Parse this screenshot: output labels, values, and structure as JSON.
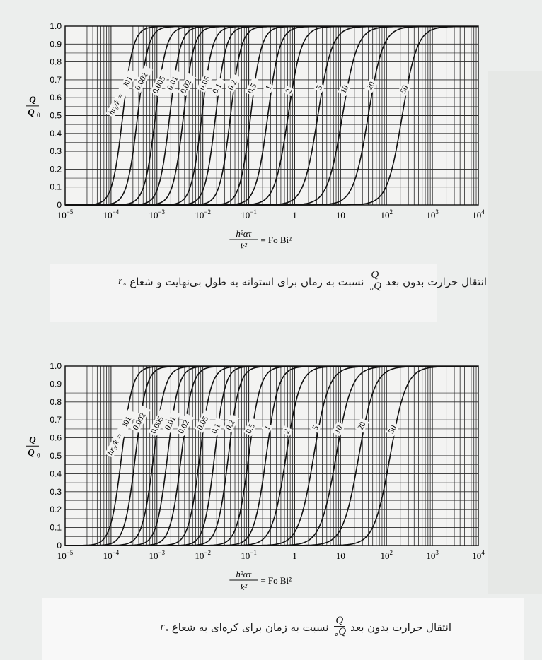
{
  "chart_data": [
    {
      "type": "line",
      "title": "",
      "xscale": "log",
      "xlim": [
        1e-05,
        10000
      ],
      "ylim": [
        0,
        1.0
      ],
      "xticks": [
        "10",
        "−5",
        "10",
        "−4",
        "10",
        "−3",
        "10",
        "−2",
        "10",
        "−1",
        "1",
        "10",
        "10",
        "2",
        "10",
        "3",
        "10",
        "4"
      ],
      "xtick_labels": [
        {
          "base": "10",
          "exp": "−5"
        },
        {
          "base": "10",
          "exp": "−4"
        },
        {
          "base": "10",
          "exp": "−3"
        },
        {
          "base": "10",
          "exp": "−2"
        },
        {
          "base": "10",
          "exp": "−1"
        },
        {
          "base": "1",
          "exp": ""
        },
        {
          "base": "10",
          "exp": ""
        },
        {
          "base": "10",
          "exp": "2"
        },
        {
          "base": "10",
          "exp": "3"
        },
        {
          "base": "10",
          "exp": "4"
        }
      ],
      "yticks": [
        "0",
        "0.1",
        "0.2",
        "0.3",
        "0.4",
        "0.5",
        "0.6",
        "0.7",
        "0.8",
        "0.9",
        "1.0"
      ],
      "ylabel": {
        "num": "Q",
        "den": "Q",
        "den_sub": "0"
      },
      "xlabel": {
        "num": "h²ατ",
        "den": "k²",
        "rhs": "= Fo Bi²"
      },
      "grid": true,
      "param_label": "hr₀/k =",
      "series": [
        {
          "name": "0.001",
          "x50": 0.00018,
          "x90": 0.00032
        },
        {
          "name": "0.002",
          "x50": 0.00038,
          "x90": 0.00068
        },
        {
          "name": "0.005",
          "x50": 0.00093,
          "x90": 0.0017
        },
        {
          "name": "0.01",
          "x50": 0.0019,
          "x90": 0.0034
        },
        {
          "name": "0.02",
          "x50": 0.0038,
          "x90": 0.0068
        },
        {
          "name": "0.05",
          "x50": 0.0095,
          "x90": 0.017
        },
        {
          "name": "0.1",
          "x50": 0.019,
          "x90": 0.034
        },
        {
          "name": "0.2",
          "x50": 0.04,
          "x90": 0.072
        },
        {
          "name": "0.5",
          "x50": 0.11,
          "x90": 0.2
        },
        {
          "name": "1",
          "x50": 0.26,
          "x90": 0.5
        },
        {
          "name": "2",
          "x50": 0.72,
          "x90": 1.5
        },
        {
          "name": "5",
          "x50": 3.2,
          "x90": 7
        },
        {
          "name": "10",
          "x50": 11,
          "x90": 25
        },
        {
          "name": "20",
          "x50": 40,
          "x90": 90
        },
        {
          "name": "50",
          "x50": 220,
          "x90": 500
        }
      ]
    },
    {
      "type": "line",
      "title": "",
      "xscale": "log",
      "xlim": [
        1e-05,
        10000
      ],
      "ylim": [
        0,
        1.0
      ],
      "xtick_labels": [
        {
          "base": "10",
          "exp": "−5"
        },
        {
          "base": "10",
          "exp": "−4"
        },
        {
          "base": "10",
          "exp": "−3"
        },
        {
          "base": "10",
          "exp": "−2"
        },
        {
          "base": "10",
          "exp": "−1"
        },
        {
          "base": "1",
          "exp": ""
        },
        {
          "base": "10",
          "exp": ""
        },
        {
          "base": "10",
          "exp": "2"
        },
        {
          "base": "10",
          "exp": "3"
        },
        {
          "base": "10",
          "exp": "4"
        }
      ],
      "yticks": [
        "0",
        "0.1",
        "0.2",
        "0.3",
        "0.4",
        "0.5",
        "0.6",
        "0.7",
        "0.8",
        "0.9",
        "1.0"
      ],
      "ylabel": {
        "num": "Q",
        "den": "Q",
        "den_sub": "0"
      },
      "xlabel": {
        "num": "h²ατ",
        "den": "k²",
        "rhs": "= Fo Bi²"
      },
      "grid": true,
      "param_label": "hr₀/k =",
      "series": [
        {
          "name": "0.001",
          "x50": 0.00017,
          "x90": 0.00031
        },
        {
          "name": "0.002",
          "x50": 0.00034,
          "x90": 0.00062
        },
        {
          "name": "0.005",
          "x50": 0.00085,
          "x90": 0.0016
        },
        {
          "name": "0.01",
          "x50": 0.0017,
          "x90": 0.0031
        },
        {
          "name": "0.02",
          "x50": 0.0034,
          "x90": 0.0062
        },
        {
          "name": "0.05",
          "x50": 0.0086,
          "x90": 0.016
        },
        {
          "name": "0.1",
          "x50": 0.018,
          "x90": 0.032
        },
        {
          "name": "0.2",
          "x50": 0.036,
          "x90": 0.066
        },
        {
          "name": "0.5",
          "x50": 0.1,
          "x90": 0.19
        },
        {
          "name": "1",
          "x50": 0.24,
          "x90": 0.47
        },
        {
          "name": "2",
          "x50": 0.65,
          "x90": 1.4
        },
        {
          "name": "5",
          "x50": 2.6,
          "x90": 6
        },
        {
          "name": "10",
          "x50": 8,
          "x90": 19
        },
        {
          "name": "20",
          "x50": 25,
          "x90": 60
        },
        {
          "name": "50",
          "x50": 120,
          "x90": 290
        }
      ]
    }
  ],
  "captions": [
    {
      "before": "انتقال حرارت بدون بعد",
      "frac_num": "Q",
      "frac_den": "Q",
      "frac_den_sub": "∘",
      "after": "نسبت به زمان برای استوانه به طول بی‌نهایت و شعاع",
      "var": "r",
      "var_sub": "∘"
    },
    {
      "before": "انتقال حرارت بدون بعد",
      "frac_num": "Q",
      "frac_den": "Q",
      "frac_den_sub": "∘",
      "after": "نسبت به زمان برای کره‌ای به شعاع",
      "var": "r",
      "var_sub": "∘"
    }
  ]
}
